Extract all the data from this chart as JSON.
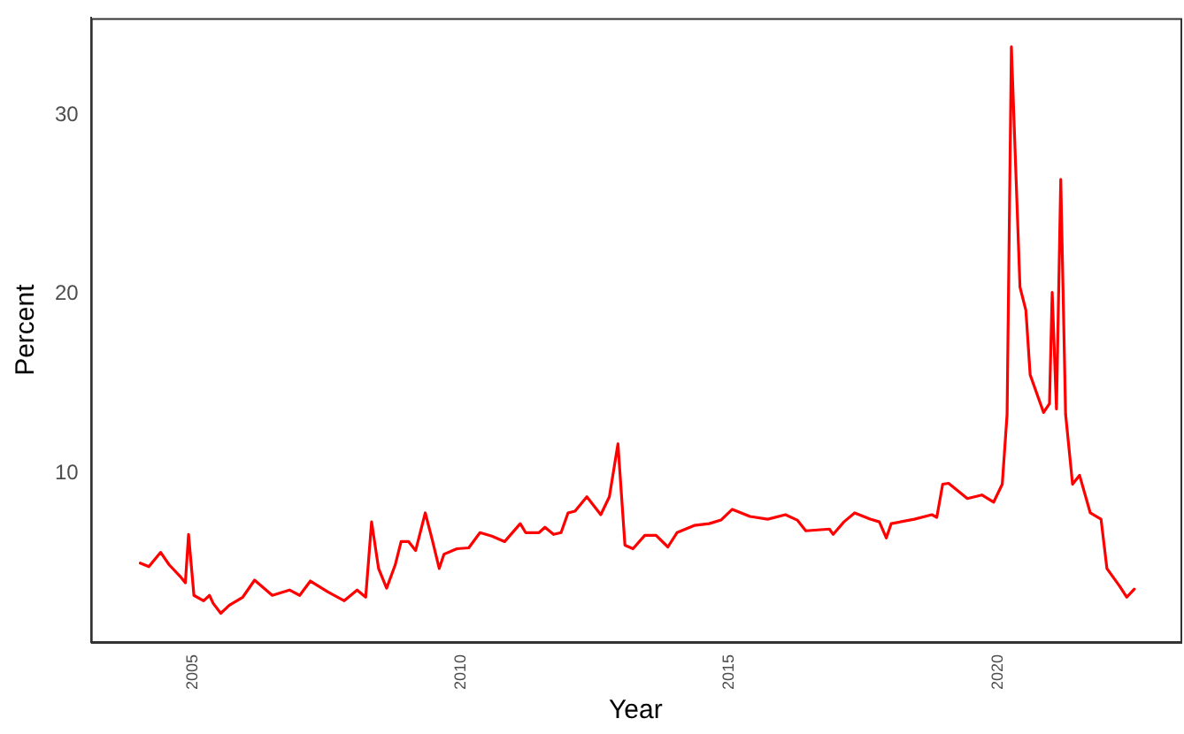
{
  "chart_data": {
    "type": "line",
    "xlabel": "Year",
    "ylabel": "Percent",
    "x": [
      2004.02,
      2004.18,
      2004.4,
      2004.56,
      2004.78,
      2004.86,
      2004.92,
      2005.02,
      2005.2,
      2005.31,
      2005.38,
      2005.52,
      2005.68,
      2005.93,
      2006.15,
      2006.48,
      2006.8,
      2006.99,
      2007.19,
      2007.51,
      2007.82,
      2008.06,
      2008.22,
      2008.33,
      2008.46,
      2008.61,
      2008.77,
      2008.88,
      2009.02,
      2009.15,
      2009.33,
      2009.46,
      2009.59,
      2009.68,
      2009.92,
      2010.14,
      2010.35,
      2010.57,
      2010.81,
      2011.1,
      2011.2,
      2011.45,
      2011.56,
      2011.72,
      2011.86,
      2011.99,
      2012.12,
      2012.34,
      2012.6,
      2012.76,
      2012.92,
      2013.05,
      2013.2,
      2013.42,
      2013.63,
      2013.85,
      2014.02,
      2014.34,
      2014.62,
      2014.84,
      2015.05,
      2015.38,
      2015.71,
      2016.04,
      2016.26,
      2016.42,
      2016.86,
      2016.93,
      2017.13,
      2017.33,
      2017.62,
      2017.79,
      2017.92,
      2018.01,
      2018.44,
      2018.77,
      2018.86,
      2018.97,
      2019.08,
      2019.43,
      2019.7,
      2019.92,
      2020.08,
      2020.17,
      2020.25,
      2020.41,
      2020.52,
      2020.6,
      2020.85,
      2020.96,
      2021.01,
      2021.09,
      2021.17,
      2021.26,
      2021.39,
      2021.52,
      2021.72,
      2021.92,
      2022.03,
      2022.27,
      2022.4,
      2022.54
    ],
    "series": [
      {
        "color": "#ff0000",
        "values": [
          5.0,
          4.8,
          5.6,
          4.9,
          4.2,
          3.9,
          6.6,
          3.2,
          2.9,
          3.2,
          2.75,
          2.2,
          2.65,
          3.1,
          4.05,
          3.2,
          3.5,
          3.2,
          4.0,
          3.4,
          2.9,
          3.5,
          3.1,
          7.3,
          4.7,
          3.6,
          4.9,
          6.2,
          6.2,
          5.7,
          7.8,
          6.3,
          4.7,
          5.5,
          5.8,
          5.85,
          6.7,
          6.5,
          6.2,
          7.2,
          6.7,
          6.7,
          7.0,
          6.6,
          6.7,
          7.8,
          7.9,
          8.7,
          7.7,
          8.7,
          11.65,
          6.0,
          5.8,
          6.55,
          6.55,
          5.9,
          6.7,
          7.1,
          7.2,
          7.4,
          8.0,
          7.6,
          7.45,
          7.7,
          7.4,
          6.8,
          6.9,
          6.6,
          7.3,
          7.8,
          7.45,
          7.3,
          6.4,
          7.2,
          7.45,
          7.7,
          7.55,
          9.4,
          9.45,
          8.6,
          8.8,
          8.4,
          9.4,
          13.3,
          33.8,
          20.4,
          19.1,
          15.5,
          13.4,
          13.9,
          20.1,
          13.6,
          26.4,
          13.3,
          9.4,
          9.9,
          7.8,
          7.45,
          4.7,
          3.7,
          3.1,
          3.55
        ]
      }
    ],
    "xlim": [
      2003.1,
      2023.4
    ],
    "xticks": [
      2005,
      2010,
      2015,
      2020
    ],
    "ylim": [
      0.6,
      35.4
    ],
    "yticks": [
      10,
      20,
      30
    ],
    "grid": false,
    "legend": false,
    "marker": "none",
    "line_style": "solid"
  }
}
